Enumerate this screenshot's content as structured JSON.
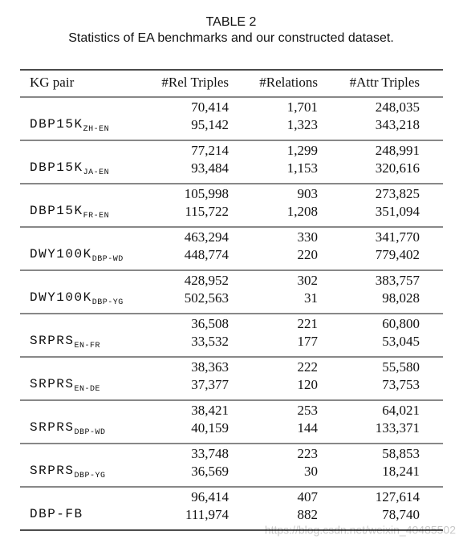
{
  "title": "TABLE 2",
  "caption": "Statistics of EA benchmarks and our constructed dataset.",
  "table": {
    "header": [
      "KG pair",
      "#Rel Triples",
      "#Relations",
      "#Attr Triples"
    ],
    "rows": [
      {
        "pair": "DBP15K",
        "sub": "ZH-EN",
        "rel_triples": [
          "70,414",
          "95,142"
        ],
        "relations": [
          "1,701",
          "1,323"
        ],
        "attr_triples": [
          "248,035",
          "343,218"
        ]
      },
      {
        "pair": "DBP15K",
        "sub": "JA-EN",
        "rel_triples": [
          "77,214",
          "93,484"
        ],
        "relations": [
          "1,299",
          "1,153"
        ],
        "attr_triples": [
          "248,991",
          "320,616"
        ]
      },
      {
        "pair": "DBP15K",
        "sub": "FR-EN",
        "rel_triples": [
          "105,998",
          "115,722"
        ],
        "relations": [
          "903",
          "1,208"
        ],
        "attr_triples": [
          "273,825",
          "351,094"
        ]
      },
      {
        "pair": "DWY100K",
        "sub": "DBP-WD",
        "rel_triples": [
          "463,294",
          "448,774"
        ],
        "relations": [
          "330",
          "220"
        ],
        "attr_triples": [
          "341,770",
          "779,402"
        ]
      },
      {
        "pair": "DWY100K",
        "sub": "DBP-YG",
        "rel_triples": [
          "428,952",
          "502,563"
        ],
        "relations": [
          "302",
          "31"
        ],
        "attr_triples": [
          "383,757",
          "98,028"
        ]
      },
      {
        "pair": "SRPRS",
        "sub": "EN-FR",
        "rel_triples": [
          "36,508",
          "33,532"
        ],
        "relations": [
          "221",
          "177"
        ],
        "attr_triples": [
          "60,800",
          "53,045"
        ]
      },
      {
        "pair": "SRPRS",
        "sub": "EN-DE",
        "rel_triples": [
          "38,363",
          "37,377"
        ],
        "relations": [
          "222",
          "120"
        ],
        "attr_triples": [
          "55,580",
          "73,753"
        ]
      },
      {
        "pair": "SRPRS",
        "sub": "DBP-WD",
        "rel_triples": [
          "38,421",
          "40,159"
        ],
        "relations": [
          "253",
          "144"
        ],
        "attr_triples": [
          "64,021",
          "133,371"
        ]
      },
      {
        "pair": "SRPRS",
        "sub": "DBP-YG",
        "rel_triples": [
          "33,748",
          "36,569"
        ],
        "relations": [
          "223",
          "30"
        ],
        "attr_triples": [
          "58,853",
          "18,241"
        ]
      },
      {
        "pair": "DBP-FB",
        "rel_triples": [
          "96,414",
          "111,974"
        ],
        "relations": [
          "407",
          "882"
        ],
        "attr_triples": [
          "127,614",
          "78,740"
        ]
      }
    ]
  },
  "watermark": "https://blog.csdn.net/weixin_40485502"
}
